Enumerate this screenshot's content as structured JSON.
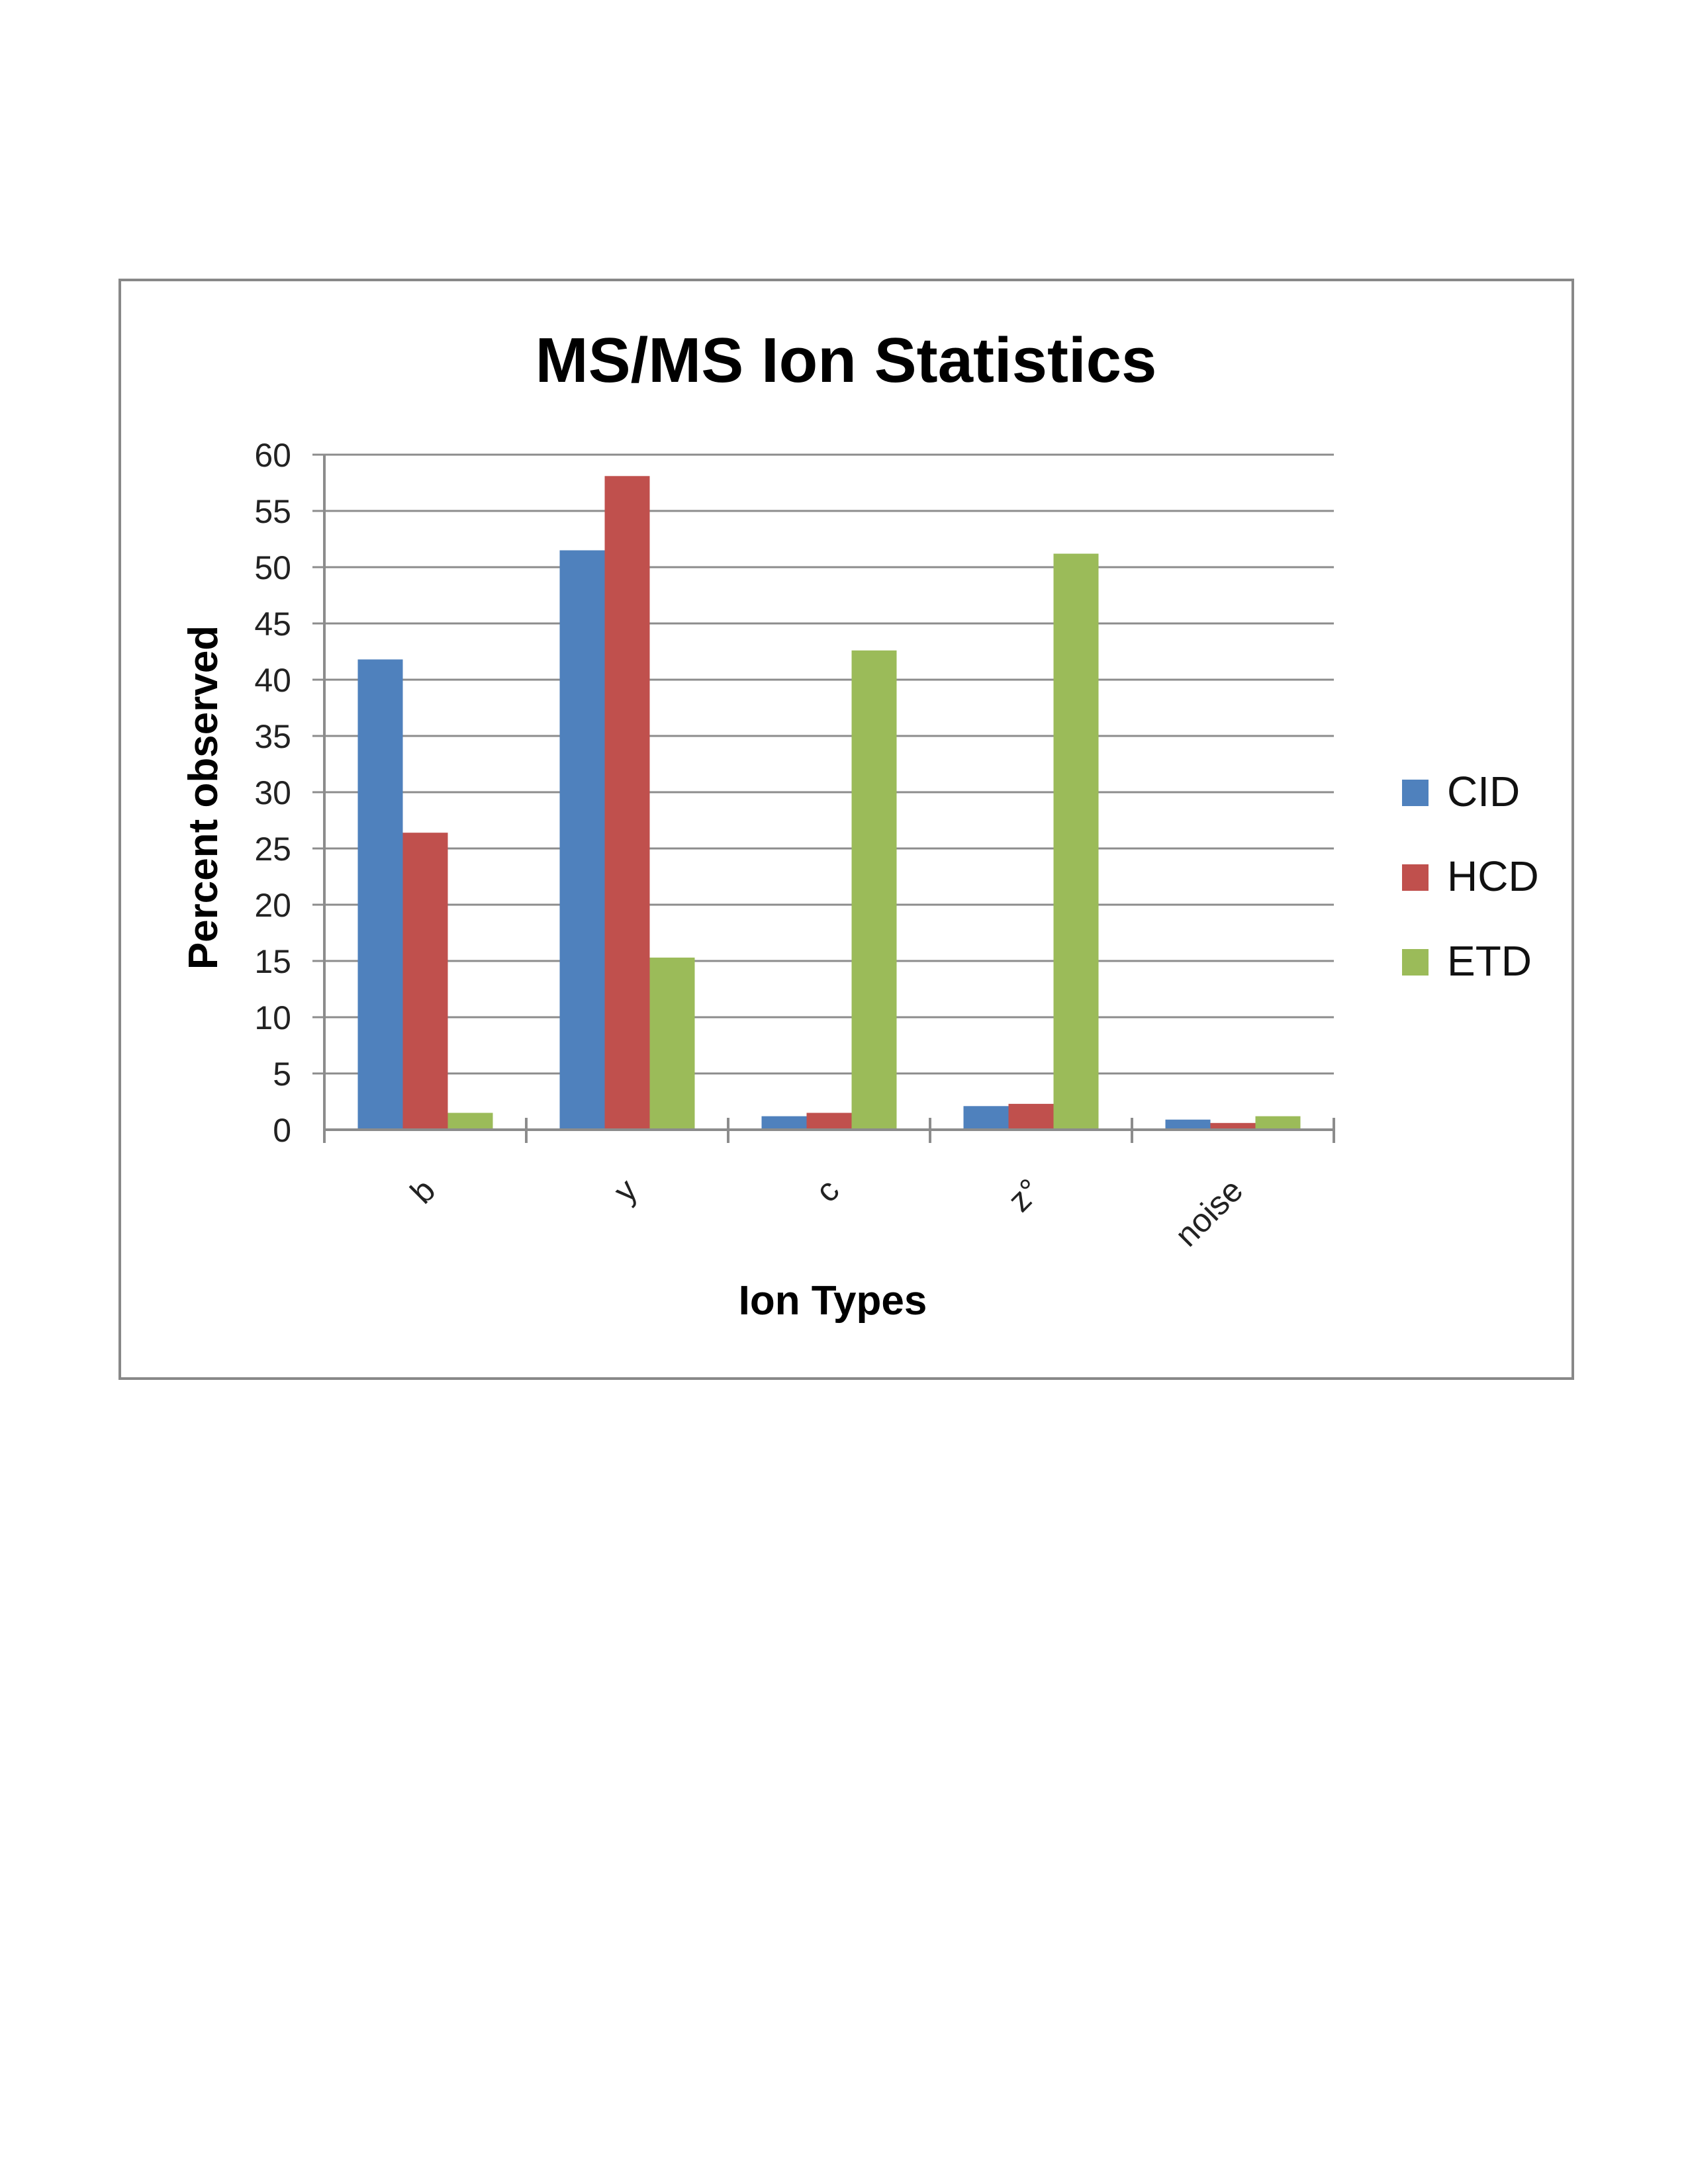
{
  "chart_data": {
    "type": "bar",
    "title": "MS/MS Ion Statistics",
    "xlabel": "Ion Types",
    "ylabel": "Percent observed",
    "categories": [
      "b",
      "y",
      "c",
      "z°",
      "noise"
    ],
    "ylim": [
      0,
      60
    ],
    "ytick_step": 5,
    "grid": true,
    "legend_position": "right",
    "series": [
      {
        "name": "CID",
        "color": "#4f81bd",
        "values": [
          41.8,
          51.5,
          1.2,
          2.1,
          0.9
        ]
      },
      {
        "name": "HCD",
        "color": "#c0504d",
        "values": [
          26.4,
          58.1,
          1.5,
          2.3,
          0.6
        ]
      },
      {
        "name": "ETD",
        "color": "#9bbb59",
        "values": [
          1.5,
          15.3,
          42.6,
          51.2,
          1.2
        ]
      }
    ]
  }
}
